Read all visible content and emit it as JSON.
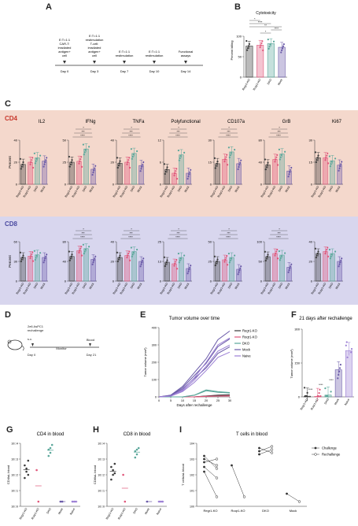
{
  "panel_labels": {
    "A": "A",
    "B": "B",
    "C": "C",
    "D": "D",
    "E": "E",
    "F": "F",
    "G": "G",
    "H": "H",
    "I": "I"
  },
  "timeline_A": {
    "events": [
      {
        "day": "Day 0",
        "text": "E:T=1:1\nCAR-T:\nirradiated\nantigen+\ncell"
      },
      {
        "day": "Day 3",
        "text": "E:T=1:1\nrestimulation\nT-cell:\nirradiated\nantigen+\ncell"
      },
      {
        "day": "Day 7",
        "text": "E:T=1:1\nrestimulation"
      },
      {
        "day": "Day 10",
        "text": "E:T=1:1\nrestimulation"
      },
      {
        "day": "Day 14",
        "text": "Functional\nassays"
      }
    ]
  },
  "groups": [
    "Regnase1-KO",
    "Roquin1-KO",
    "DKO",
    "Mock"
  ],
  "group_labels_short": [
    "Regr1-KO",
    "Roqr1-KO",
    "DKO",
    "Mock"
  ],
  "colors": {
    "reg": "#3a3a3a",
    "roq": "#e0567a",
    "dko": "#5aa79a",
    "mock": "#6a5aa8",
    "naive": "#9b7fd4",
    "cd4bg": "#f4d8cc",
    "cd8bg": "#d8d6ee",
    "cd4": "#c8382c",
    "cd8": "#4a4aa0"
  },
  "chart_data": [
    {
      "id": "B",
      "type": "bar",
      "title": "Cytotoxicity",
      "ylabel": "Percent killing",
      "categories": [
        "Regr1-KO",
        "Roqr1-KO",
        "DKO",
        "Mock"
      ],
      "values": [
        76,
        78,
        82,
        73
      ],
      "ylim": [
        0,
        100
      ],
      "sig": [
        "*",
        "****",
        "**",
        "****",
        "*"
      ]
    },
    {
      "id": "C-CD4",
      "type": "bar",
      "row_label": "CD4",
      "ylabel": "Percent",
      "categories": [
        "Regr1-KO",
        "Roqr1-KO",
        "DKO",
        "Mock"
      ],
      "panels": [
        {
          "title": "IL2",
          "values": [
            18,
            20,
            24,
            21
          ],
          "ylim": [
            0,
            40
          ]
        },
        {
          "title": "IFNg",
          "values": [
            25,
            26,
            40,
            17
          ],
          "ylim": [
            0,
            50
          ]
        },
        {
          "title": "TNFa",
          "values": [
            19,
            20,
            28,
            17
          ],
          "ylim": [
            0,
            40
          ]
        },
        {
          "title": "Polyfunctional",
          "values": [
            4,
            3,
            8,
            3
          ],
          "ylim": [
            0,
            12
          ]
        },
        {
          "title": "CD107a",
          "values": [
            14,
            17,
            22,
            14
          ],
          "ylim": [
            0,
            30
          ]
        },
        {
          "title": "GrB",
          "values": [
            35,
            45,
            55,
            24
          ],
          "ylim": [
            0,
            80
          ]
        },
        {
          "title": "Ki67",
          "values": [
            18,
            18,
            16,
            13
          ],
          "ylim": [
            0,
            30
          ]
        }
      ]
    },
    {
      "id": "C-CD8",
      "type": "bar",
      "row_label": "CD8",
      "ylabel": "Percent",
      "categories": [
        "Regr1-KO",
        "Roqr1-KO",
        "DKO",
        "Mock"
      ],
      "panels": [
        {
          "title": "IL2",
          "values": [
            36,
            38,
            40,
            36
          ],
          "ylim": [
            0,
            60
          ]
        },
        {
          "title": "IFNg",
          "values": [
            50,
            62,
            66,
            44
          ],
          "ylim": [
            0,
            80
          ]
        },
        {
          "title": "TNFa",
          "values": [
            24,
            26,
            30,
            20
          ],
          "ylim": [
            0,
            40
          ]
        },
        {
          "title": "Polyfunctional",
          "values": [
            12,
            11,
            15,
            8
          ],
          "ylim": [
            0,
            25
          ]
        },
        {
          "title": "CD107a",
          "values": [
            25,
            27,
            30,
            15
          ],
          "ylim": [
            0,
            50
          ]
        },
        {
          "title": "GrB",
          "values": [
            62,
            70,
            66,
            35
          ],
          "ylim": [
            0,
            100
          ]
        },
        {
          "title": "Ki67",
          "values": [
            28,
            30,
            28,
            20
          ],
          "ylim": [
            0,
            40
          ]
        }
      ]
    },
    {
      "id": "E",
      "type": "line",
      "title": "Tumor volume over time",
      "xlabel": "Days after rechallenge",
      "ylabel": "Tumor volume (mm³)",
      "x": [
        0,
        5,
        10,
        15,
        20,
        25,
        30
      ],
      "xlim": [
        0,
        30
      ],
      "ylim": [
        0,
        400
      ],
      "series": [
        {
          "name": "Regr1-KO",
          "color": "#3a3a3a",
          "values": [
            0,
            0,
            0,
            0,
            5,
            10,
            12
          ]
        },
        {
          "name": "Roqr1-KO",
          "color": "#e0567a",
          "values": [
            0,
            0,
            0,
            0,
            3,
            5,
            6
          ]
        },
        {
          "name": "DKO",
          "color": "#5aa79a",
          "values": [
            0,
            0,
            0,
            10,
            40,
            30,
            25
          ]
        },
        {
          "name": "Mock",
          "color": "#6a5aa8",
          "values": [
            0,
            10,
            60,
            140,
            220,
            330,
            380
          ]
        },
        {
          "name": "Naive",
          "color": "#9b7fd4",
          "values": [
            0,
            5,
            40,
            110,
            200,
            300,
            340
          ]
        }
      ]
    },
    {
      "id": "F",
      "type": "bar",
      "title": "21 days after rechallenge",
      "ylabel": "Tumor volume (mm³)",
      "categories": [
        "Regr1-KO",
        "Roqr1-KO",
        "DKO",
        "Mock",
        "Naive"
      ],
      "values": [
        3,
        2,
        8,
        120,
        205
      ],
      "ylim": [
        0,
        300
      ],
      "sig": [
        "****",
        "****",
        "****"
      ]
    },
    {
      "id": "G",
      "type": "scatter",
      "title": "CD4 in blood",
      "ylabel": "CD4/uL blood",
      "categories": [
        "Regr1-KO",
        "Roqr1-KO",
        "DKO",
        "Mock",
        "Naive"
      ],
      "ylim": [
        0,
        4
      ]
    },
    {
      "id": "H",
      "type": "scatter",
      "title": "CD8 in blood",
      "ylabel": "CD8/uL blood",
      "categories": [
        "Regr1-KO",
        "Roqr1-KO",
        "DKO",
        "Mock",
        "Naive"
      ],
      "ylim": [
        0,
        4
      ]
    },
    {
      "id": "I",
      "type": "line",
      "title": "T cells in blood",
      "ylabel": "T cells/uL blood",
      "categories": [
        "Regr1-KO",
        "Roqr1-KO",
        "DKO",
        "Mock"
      ],
      "legend": [
        "Challenge",
        "Rechallenge"
      ]
    }
  ],
  "panel_D": {
    "mouse": "2e6 AsPC1\nrechallenge",
    "route": "s.c.",
    "d0": "Day 0",
    "monitor": "Monitor",
    "blood": "Blood",
    "d21": "Day 21"
  }
}
